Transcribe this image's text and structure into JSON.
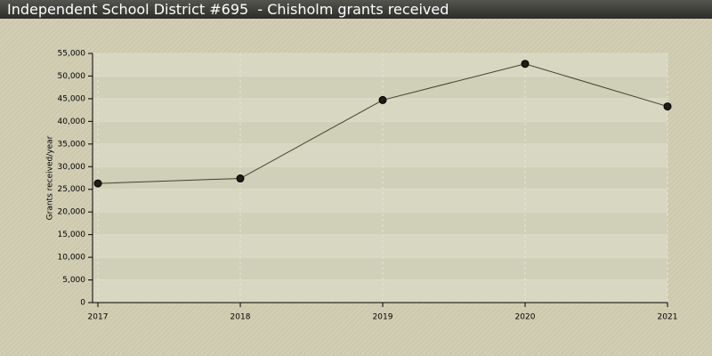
{
  "chart_data": {
    "type": "line",
    "title": "Independent School District #695  - Chisholm grants received",
    "y_label": "Grants received/year",
    "categories": [
      "2017",
      "2018",
      "2019",
      "2020",
      "2021"
    ],
    "series": [
      {
        "name": "Grants received",
        "color": "#3e4228",
        "values": [
          26300,
          27400,
          44700,
          52700,
          43300
        ]
      }
    ],
    "ylim": [
      0,
      55000
    ],
    "yticks": [
      0,
      {
        "value": 5000,
        "label": "5,000"
      },
      {
        "value": 10000,
        "label": "10,000"
      },
      {
        "value": 15000,
        "label": "15,000"
      },
      {
        "value": 20000,
        "label": "20,000"
      },
      {
        "value": 25000,
        "label": "25,000"
      },
      {
        "value": 30000,
        "label": "30,000"
      },
      {
        "value": 35000,
        "label": "35,000"
      },
      {
        "value": 40000,
        "label": "40,000"
      },
      {
        "value": 45000,
        "label": "45,000"
      },
      {
        "value": 50000,
        "label": "50,000"
      },
      {
        "value": 55000,
        "label": "55,000"
      }
    ],
    "grid": true
  }
}
